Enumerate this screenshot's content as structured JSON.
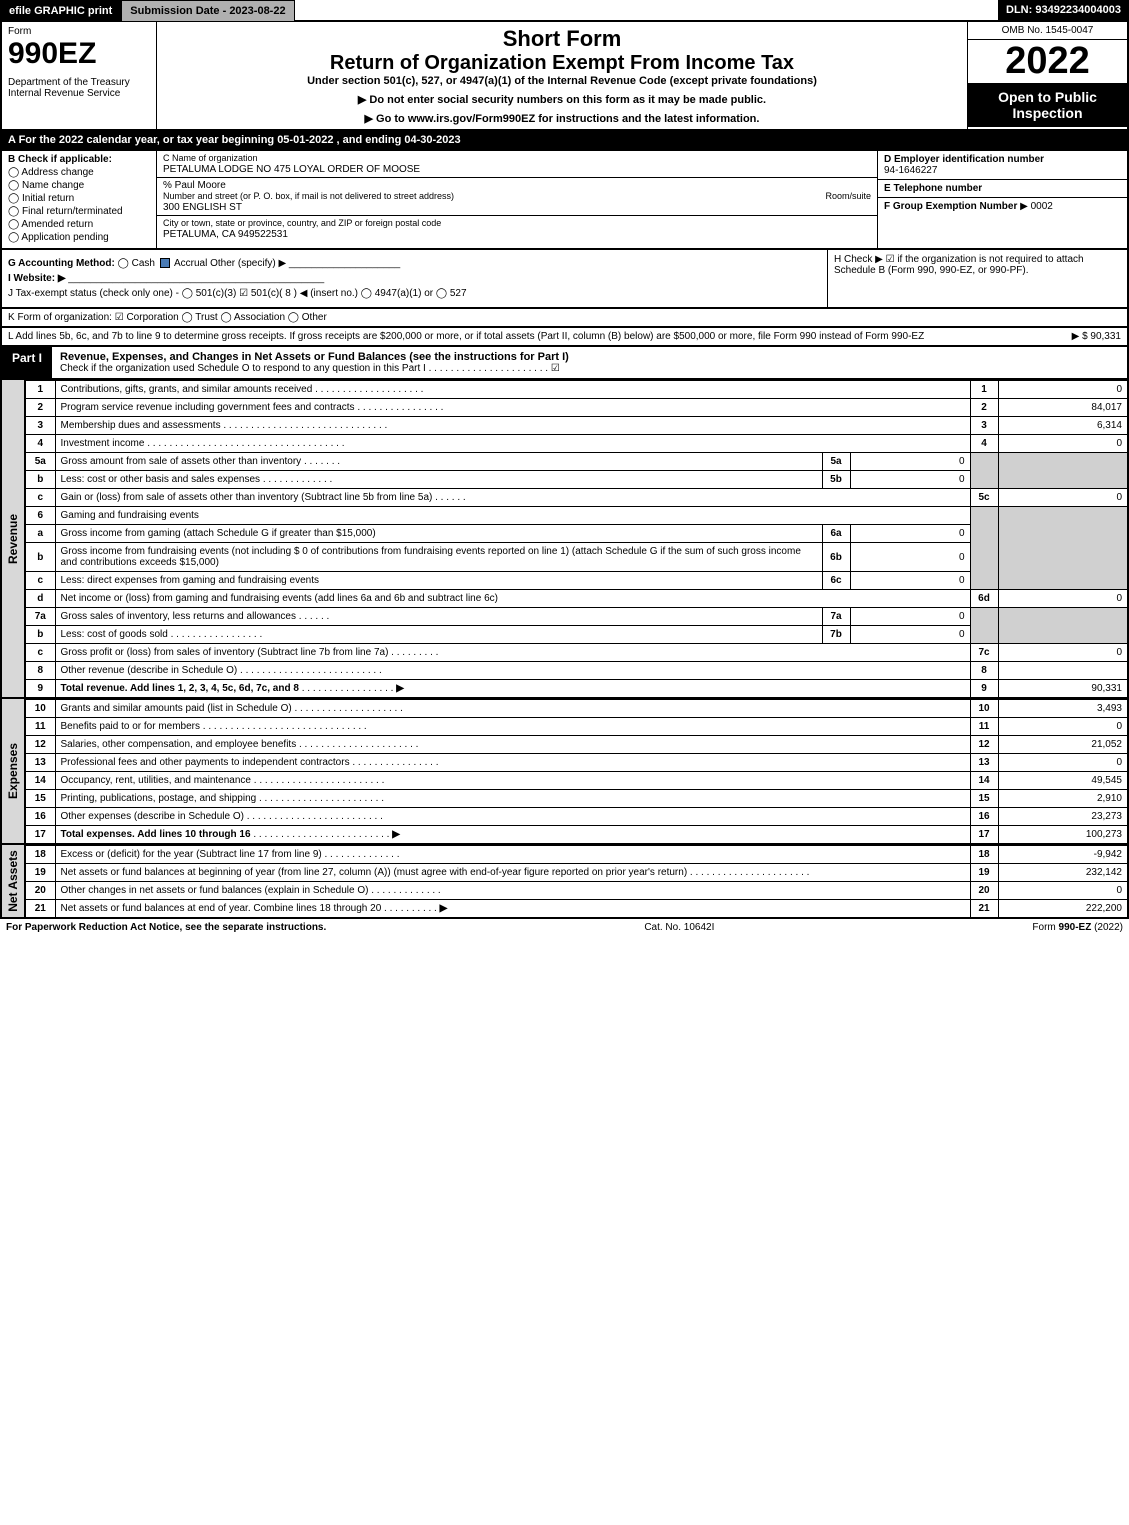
{
  "topbar": {
    "efile": "efile GRAPHIC print",
    "submission": "Submission Date - 2023-08-22",
    "dln": "DLN: 93492234004003"
  },
  "header": {
    "form": "Form",
    "number": "990EZ",
    "dept": "Department of the Treasury\nInternal Revenue Service",
    "title1": "Short Form",
    "title2": "Return of Organization Exempt From Income Tax",
    "title3": "Under section 501(c), 527, or 4947(a)(1) of the Internal Revenue Code (except private foundations)",
    "title4a": "▶ Do not enter social security numbers on this form as it may be made public.",
    "title4b": "▶ Go to www.irs.gov/Form990EZ for instructions and the latest information.",
    "omb": "OMB No. 1545-0047",
    "year": "2022",
    "open": "Open to Public Inspection"
  },
  "A": "A  For the 2022 calendar year, or tax year beginning 05-01-2022 , and ending 04-30-2023",
  "B": {
    "label": "B  Check if applicable:",
    "opts": [
      "Address change",
      "Name change",
      "Initial return",
      "Final return/terminated",
      "Amended return",
      "Application pending"
    ]
  },
  "C": {
    "label": "C Name of organization",
    "name": "PETALUMA LODGE NO 475 LOYAL ORDER OF MOOSE",
    "care": "% Paul Moore",
    "street_lbl": "Number and street (or P. O. box, if mail is not delivered to street address)",
    "room_lbl": "Room/suite",
    "street": "300 ENGLISH ST",
    "city_lbl": "City or town, state or province, country, and ZIP or foreign postal code",
    "city": "PETALUMA, CA  949522531"
  },
  "D": {
    "label": "D Employer identification number",
    "val": "94-1646227"
  },
  "E": {
    "label": "E Telephone number",
    "val": ""
  },
  "F": {
    "label": "F Group Exemption Number",
    "val": "▶ 0002"
  },
  "G": {
    "label": "G Accounting Method:",
    "cash": "Cash",
    "accrual": "Accrual",
    "other": "Other (specify) ▶"
  },
  "H": "H   Check ▶ ☑ if the organization is not required to attach Schedule B (Form 990, 990-EZ, or 990-PF).",
  "I": "I Website: ▶",
  "J": "J Tax-exempt status (check only one) - ◯ 501(c)(3)  ☑ 501(c)( 8 ) ◀ (insert no.)  ◯ 4947(a)(1) or  ◯ 527",
  "K": "K Form of organization:  ☑ Corporation  ◯ Trust  ◯ Association  ◯ Other",
  "L": {
    "text": "L Add lines 5b, 6c, and 7b to line 9 to determine gross receipts. If gross receipts are $200,000 or more, or if total assets (Part II, column (B) below) are $500,000 or more, file Form 990 instead of Form 990-EZ",
    "amt": "▶ $ 90,331"
  },
  "part1": {
    "tag": "Part I",
    "title": "Revenue, Expenses, and Changes in Net Assets or Fund Balances (see the instructions for Part I)",
    "sub": "Check if the organization used Schedule O to respond to any question in this Part I",
    "chk": "☑"
  },
  "lines": {
    "l1": {
      "n": "1",
      "d": "Contributions, gifts, grants, and similar amounts received",
      "ln": "1",
      "a": "0"
    },
    "l2": {
      "n": "2",
      "d": "Program service revenue including government fees and contracts",
      "ln": "2",
      "a": "84,017"
    },
    "l3": {
      "n": "3",
      "d": "Membership dues and assessments",
      "ln": "3",
      "a": "6,314"
    },
    "l4": {
      "n": "4",
      "d": "Investment income",
      "ln": "4",
      "a": "0"
    },
    "l5a": {
      "n": "5a",
      "d": "Gross amount from sale of assets other than inventory",
      "sn": "5a",
      "sv": "0"
    },
    "l5b": {
      "n": "b",
      "d": "Less: cost or other basis and sales expenses",
      "sn": "5b",
      "sv": "0"
    },
    "l5c": {
      "n": "c",
      "d": "Gain or (loss) from sale of assets other than inventory (Subtract line 5b from line 5a)",
      "ln": "5c",
      "a": "0"
    },
    "l6": {
      "n": "6",
      "d": "Gaming and fundraising events"
    },
    "l6a": {
      "n": "a",
      "d": "Gross income from gaming (attach Schedule G if greater than $15,000)",
      "sn": "6a",
      "sv": "0"
    },
    "l6b": {
      "n": "b",
      "d": "Gross income from fundraising events (not including $ 0 of contributions from fundraising events reported on line 1) (attach Schedule G if the sum of such gross income and contributions exceeds $15,000)",
      "sn": "6b",
      "sv": "0"
    },
    "l6c": {
      "n": "c",
      "d": "Less: direct expenses from gaming and fundraising events",
      "sn": "6c",
      "sv": "0"
    },
    "l6d": {
      "n": "d",
      "d": "Net income or (loss) from gaming and fundraising events (add lines 6a and 6b and subtract line 6c)",
      "ln": "6d",
      "a": "0"
    },
    "l7a": {
      "n": "7a",
      "d": "Gross sales of inventory, less returns and allowances",
      "sn": "7a",
      "sv": "0"
    },
    "l7b": {
      "n": "b",
      "d": "Less: cost of goods sold",
      "sn": "7b",
      "sv": "0"
    },
    "l7c": {
      "n": "c",
      "d": "Gross profit or (loss) from sales of inventory (Subtract line 7b from line 7a)",
      "ln": "7c",
      "a": "0"
    },
    "l8": {
      "n": "8",
      "d": "Other revenue (describe in Schedule O)",
      "ln": "8",
      "a": ""
    },
    "l9": {
      "n": "9",
      "d": "Total revenue. Add lines 1, 2, 3, 4, 5c, 6d, 7c, and 8",
      "ln": "9",
      "a": "90,331",
      "arrow": "▶"
    },
    "l10": {
      "n": "10",
      "d": "Grants and similar amounts paid (list in Schedule O)",
      "ln": "10",
      "a": "3,493"
    },
    "l11": {
      "n": "11",
      "d": "Benefits paid to or for members",
      "ln": "11",
      "a": "0"
    },
    "l12": {
      "n": "12",
      "d": "Salaries, other compensation, and employee benefits",
      "ln": "12",
      "a": "21,052"
    },
    "l13": {
      "n": "13",
      "d": "Professional fees and other payments to independent contractors",
      "ln": "13",
      "a": "0"
    },
    "l14": {
      "n": "14",
      "d": "Occupancy, rent, utilities, and maintenance",
      "ln": "14",
      "a": "49,545"
    },
    "l15": {
      "n": "15",
      "d": "Printing, publications, postage, and shipping",
      "ln": "15",
      "a": "2,910"
    },
    "l16": {
      "n": "16",
      "d": "Other expenses (describe in Schedule O)",
      "ln": "16",
      "a": "23,273"
    },
    "l17": {
      "n": "17",
      "d": "Total expenses. Add lines 10 through 16",
      "ln": "17",
      "a": "100,273",
      "arrow": "▶"
    },
    "l18": {
      "n": "18",
      "d": "Excess or (deficit) for the year (Subtract line 17 from line 9)",
      "ln": "18",
      "a": "-9,942"
    },
    "l19": {
      "n": "19",
      "d": "Net assets or fund balances at beginning of year (from line 27, column (A)) (must agree with end-of-year figure reported on prior year's return)",
      "ln": "19",
      "a": "232,142"
    },
    "l20": {
      "n": "20",
      "d": "Other changes in net assets or fund balances (explain in Schedule O)",
      "ln": "20",
      "a": "0"
    },
    "l21": {
      "n": "21",
      "d": "Net assets or fund balances at end of year. Combine lines 18 through 20",
      "ln": "21",
      "a": "222,200",
      "arrow": "▶"
    }
  },
  "sidetabs": {
    "rev": "Revenue",
    "exp": "Expenses",
    "net": "Net Assets"
  },
  "footer": {
    "left": "For Paperwork Reduction Act Notice, see the separate instructions.",
    "mid": "Cat. No. 10642I",
    "right": "Form 990-EZ (2022)"
  },
  "colors": {
    "black": "#000000",
    "grey": "#b0b0b0",
    "shade": "#d0d0d0",
    "blue": "#4a7bb5"
  }
}
